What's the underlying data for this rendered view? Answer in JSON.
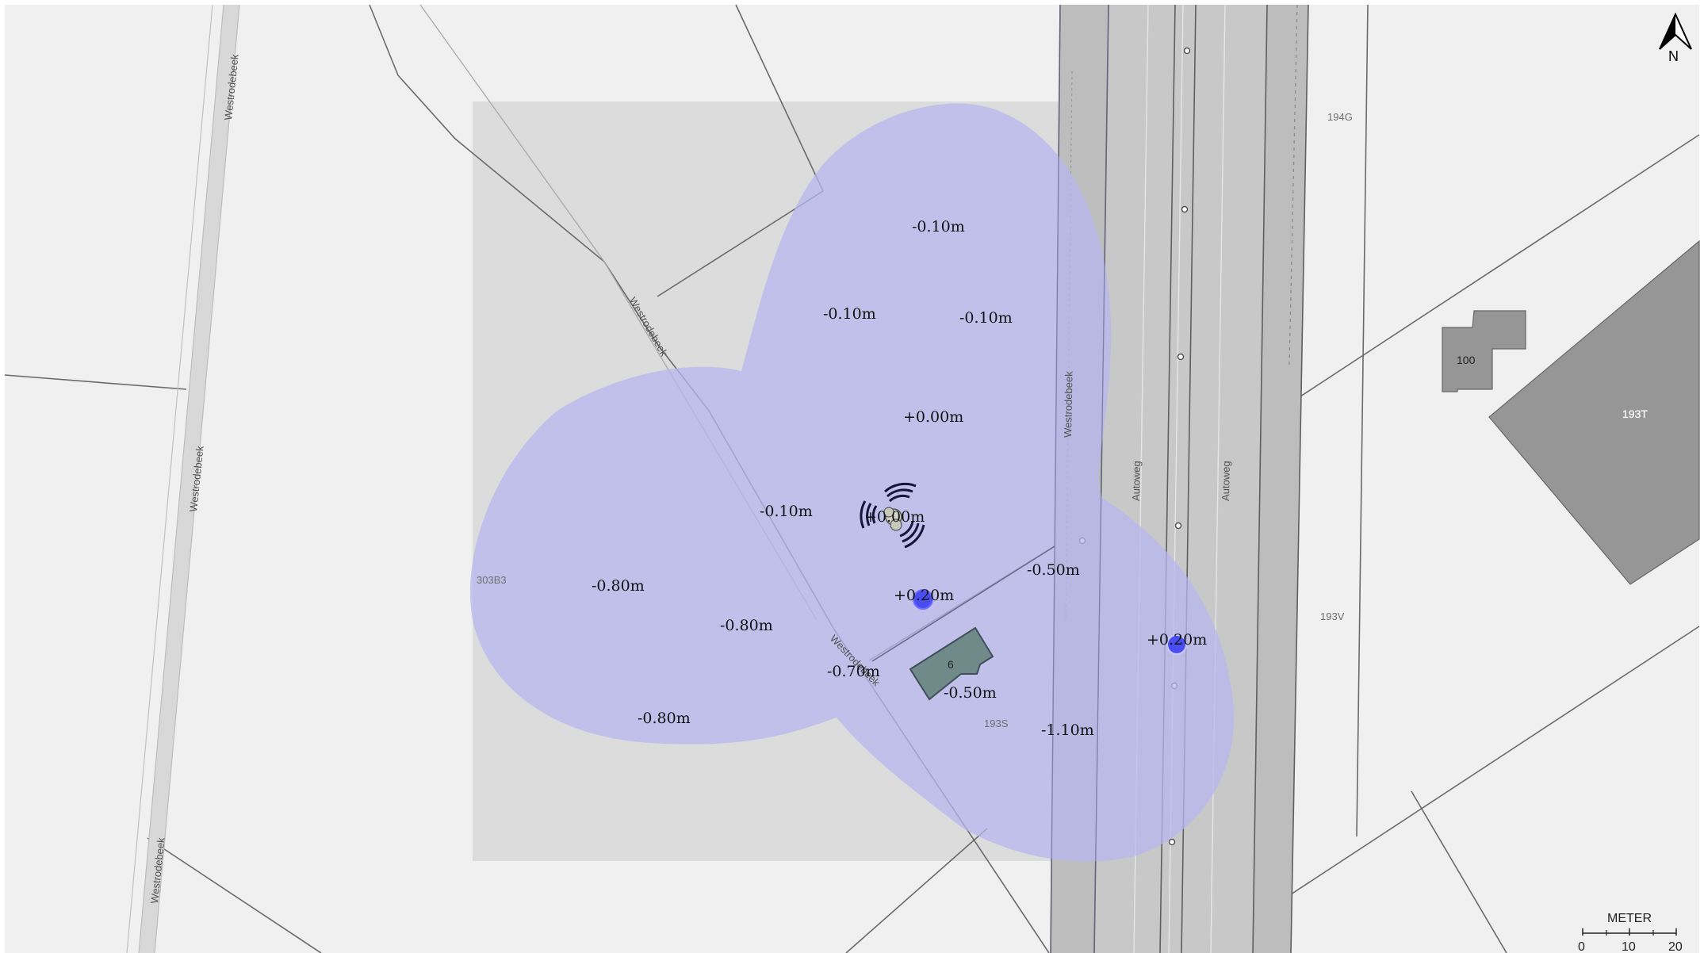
{
  "map": {
    "north_arrow": {
      "icon": "north-arrow-icon",
      "label": "N"
    },
    "scale_bar": {
      "title": "METER",
      "ticks": [
        "0",
        "10",
        "20"
      ]
    },
    "streets": [
      {
        "id": "westrodebeek-1",
        "label": "Westrodebeek"
      },
      {
        "id": "westrodebeek-2",
        "label": "Westrodebeek"
      },
      {
        "id": "westrodebeek-3",
        "label": "Westrodebeek"
      },
      {
        "id": "westrodebeek-4",
        "label": "Westrodebeek"
      },
      {
        "id": "westrodebeek-5",
        "label": "Westrodebeek"
      },
      {
        "id": "westrodebeek-6",
        "label": "Westrodebeek"
      },
      {
        "id": "autoweg-1",
        "label": "Autoweg"
      },
      {
        "id": "autoweg-2",
        "label": "Autoweg"
      }
    ],
    "parcels": [
      "194G",
      "193V",
      "303B3",
      "193S"
    ],
    "buildings": [
      {
        "id": "building-100",
        "label": "100"
      },
      {
        "id": "building-193t",
        "label": "193T"
      },
      {
        "id": "building-6",
        "label": "6"
      }
    ],
    "depth_labels": [
      "-0.10m",
      "-0.10m",
      "-0.10m",
      "+0.00m",
      "-0.10m",
      "+0.00m",
      "-0.50m",
      "+0.20m",
      "-0.80m",
      "-0.80m",
      "-0.70m",
      "-0.50m",
      "-0.80m",
      "-1.10m",
      "+0.20m"
    ],
    "colors": {
      "background": "#f0f0f0",
      "analysis_area": "#dcdcdc",
      "water_overlay": "#b7b7f0",
      "road_band": "#bdbdbd",
      "building": "#969696",
      "building_selected": "#6f8a88",
      "marker": "#4a4ef2"
    }
  }
}
